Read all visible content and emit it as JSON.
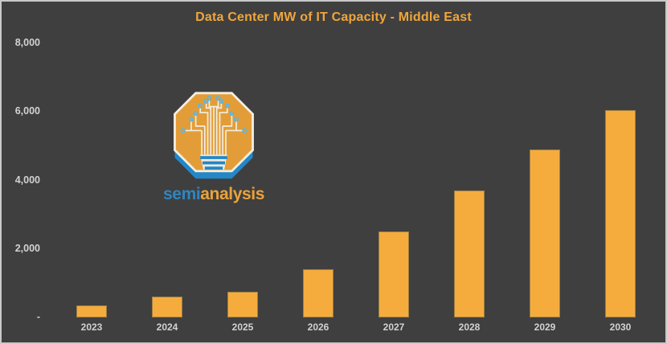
{
  "window": {
    "background": "#3F3F3F",
    "frame_border_color": "#C9C9C9"
  },
  "chart_data": {
    "type": "bar",
    "title": "Data Center MW of IT Capacity - Middle East",
    "title_color": "#EFA63C",
    "categories": [
      "2023",
      "2024",
      "2025",
      "2026",
      "2027",
      "2028",
      "2029",
      "2030"
    ],
    "values": [
      350,
      600,
      750,
      1400,
      2500,
      3700,
      4900,
      6050
    ],
    "series_name": "Data Center MW of IT Capacity",
    "xlabel": "",
    "ylabel": "",
    "ylim": [
      0,
      8000
    ],
    "y_ticks": [
      {
        "value": 8000,
        "label": "8,000"
      },
      {
        "value": 6000,
        "label": "6,000"
      },
      {
        "value": 4000,
        "label": "4,000"
      },
      {
        "value": 2000,
        "label": "2,000"
      },
      {
        "value": 0,
        "label": "-"
      }
    ],
    "grid": false,
    "legend": false,
    "bar_color": "#F5AC3D",
    "axis_label_color": "#D2D2D2"
  },
  "watermark": {
    "logo_icon": "semianalysis-circuit-tree-octagon-logo",
    "brand_semi": "semi",
    "brand_analysis": "analysis",
    "semi_color": "#2E86C1",
    "analysis_color": "#E8A33D",
    "logo_octagon_color": "#E39D38",
    "logo_shadow_color": "#2387C8"
  }
}
